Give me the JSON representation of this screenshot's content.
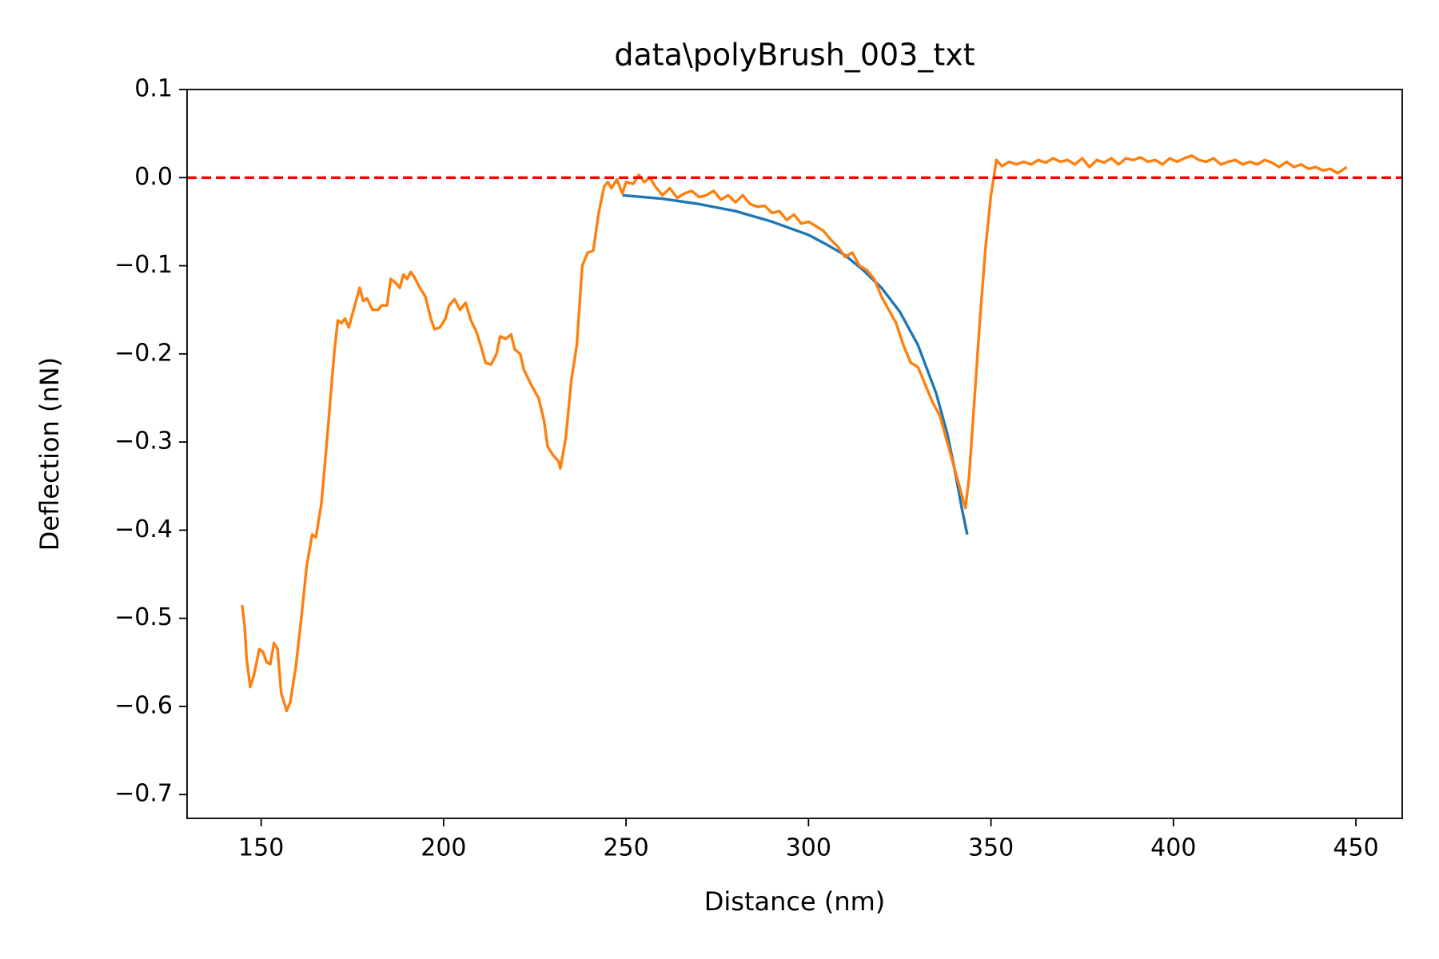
{
  "chart_data": {
    "type": "line",
    "title": "data\\polyBrush_003_txt",
    "x_label": "Distance (nm)",
    "y_label": "Deflection (nN)",
    "xlim": [
      129.7,
      462.7
    ],
    "ylim": [
      -0.727,
      0.1
    ],
    "xticks": [
      150,
      200,
      250,
      300,
      350,
      400,
      450
    ],
    "yticks": [
      {
        "value": -0.7,
        "label": "−0.7"
      },
      {
        "value": -0.6,
        "label": "−0.6"
      },
      {
        "value": -0.5,
        "label": "−0.5"
      },
      {
        "value": -0.4,
        "label": "−0.4"
      },
      {
        "value": -0.3,
        "label": "−0.3"
      },
      {
        "value": -0.2,
        "label": "−0.2"
      },
      {
        "value": -0.1,
        "label": "−0.1"
      },
      {
        "value": 0,
        "label": "0.0"
      },
      0.1
    ],
    "grid": false,
    "reference_line": {
      "value": 0,
      "color": "#ff0000",
      "dashed": true
    },
    "series": [
      {
        "color": "#1f77b4",
        "x": [
          249,
          260,
          270,
          280,
          290,
          300,
          305,
          310,
          315,
          320,
          325,
          330,
          335,
          338,
          340,
          342,
          343.5
        ],
        "values": [
          -0.02,
          -0.024,
          -0.03,
          -0.038,
          -0.05,
          -0.065,
          -0.076,
          -0.088,
          -0.105,
          -0.125,
          -0.152,
          -0.19,
          -0.245,
          -0.29,
          -0.33,
          -0.375,
          -0.405
        ]
      },
      {
        "color": "#ff7f0e",
        "x": [
          144.8,
          145.5,
          146,
          147,
          148,
          149.5,
          150.5,
          151.5,
          152.5,
          153.5,
          154.5,
          155.5,
          157,
          158,
          159.5,
          161,
          162.5,
          164,
          165,
          166.5,
          168,
          170,
          171,
          172,
          173,
          174,
          176,
          177,
          178,
          179,
          180.5,
          182,
          183,
          184.5,
          185.5,
          187,
          188,
          189,
          190,
          191,
          192,
          193.5,
          195,
          196.5,
          197.5,
          199,
          200.5,
          201.5,
          203,
          204.5,
          206,
          207.5,
          209,
          210.5,
          211.5,
          213,
          214.5,
          215.5,
          217,
          218.5,
          219.5,
          221,
          222,
          224,
          226,
          227.5,
          228.5,
          230,
          231.5,
          232,
          233.5,
          235,
          236.5,
          238,
          239.5,
          241,
          242.5,
          244,
          245,
          246,
          247.5,
          249,
          250,
          252,
          253.5,
          255,
          256.5,
          258,
          260,
          262,
          264,
          266,
          268,
          270,
          272,
          274,
          276,
          278,
          280,
          282,
          284,
          286,
          288,
          290,
          292,
          294,
          296,
          298,
          300,
          302,
          304,
          306,
          308,
          310,
          312,
          314,
          316,
          318,
          320,
          322,
          324,
          326,
          328,
          330,
          332,
          334,
          336,
          338,
          340,
          342,
          343,
          344,
          345.5,
          347,
          348.5,
          350,
          351.5,
          353,
          355,
          357,
          359,
          361,
          363,
          365,
          367,
          369,
          371,
          373,
          375,
          377,
          379,
          381,
          383,
          385,
          387,
          389,
          391,
          393,
          395,
          397,
          399,
          401,
          403,
          405,
          407,
          409,
          411,
          413,
          415,
          417,
          419,
          421,
          423,
          425,
          427,
          429,
          431,
          433,
          435,
          437,
          439,
          441,
          443,
          445,
          447.5
        ],
        "values": [
          -0.485,
          -0.51,
          -0.545,
          -0.578,
          -0.565,
          -0.535,
          -0.538,
          -0.55,
          -0.552,
          -0.528,
          -0.535,
          -0.585,
          -0.605,
          -0.595,
          -0.555,
          -0.5,
          -0.44,
          -0.405,
          -0.408,
          -0.37,
          -0.3,
          -0.2,
          -0.162,
          -0.165,
          -0.16,
          -0.17,
          -0.14,
          -0.125,
          -0.14,
          -0.137,
          -0.15,
          -0.15,
          -0.145,
          -0.145,
          -0.115,
          -0.12,
          -0.125,
          -0.11,
          -0.115,
          -0.107,
          -0.113,
          -0.125,
          -0.135,
          -0.16,
          -0.172,
          -0.17,
          -0.16,
          -0.145,
          -0.138,
          -0.15,
          -0.142,
          -0.162,
          -0.175,
          -0.195,
          -0.21,
          -0.212,
          -0.2,
          -0.18,
          -0.183,
          -0.178,
          -0.195,
          -0.2,
          -0.218,
          -0.235,
          -0.25,
          -0.275,
          -0.305,
          -0.315,
          -0.322,
          -0.33,
          -0.295,
          -0.23,
          -0.19,
          -0.1,
          -0.085,
          -0.083,
          -0.04,
          -0.01,
          -0.005,
          -0.012,
          -0.002,
          -0.018,
          -0.005,
          -0.007,
          0.003,
          -0.005,
          0.0,
          -0.01,
          -0.02,
          -0.012,
          -0.023,
          -0.018,
          -0.015,
          -0.022,
          -0.02,
          -0.015,
          -0.025,
          -0.02,
          -0.028,
          -0.02,
          -0.03,
          -0.033,
          -0.032,
          -0.04,
          -0.038,
          -0.048,
          -0.042,
          -0.052,
          -0.05,
          -0.055,
          -0.06,
          -0.07,
          -0.078,
          -0.09,
          -0.085,
          -0.1,
          -0.105,
          -0.115,
          -0.135,
          -0.15,
          -0.165,
          -0.19,
          -0.21,
          -0.215,
          -0.235,
          -0.255,
          -0.27,
          -0.3,
          -0.33,
          -0.36,
          -0.375,
          -0.34,
          -0.25,
          -0.16,
          -0.08,
          -0.02,
          0.02,
          0.013,
          0.018,
          0.015,
          0.018,
          0.015,
          0.02,
          0.017,
          0.022,
          0.018,
          0.02,
          0.015,
          0.022,
          0.012,
          0.02,
          0.017,
          0.022,
          0.015,
          0.022,
          0.02,
          0.023,
          0.018,
          0.02,
          0.015,
          0.022,
          0.018,
          0.022,
          0.025,
          0.02,
          0.018,
          0.022,
          0.015,
          0.018,
          0.02,
          0.015,
          0.018,
          0.015,
          0.02,
          0.017,
          0.012,
          0.018,
          0.012,
          0.015,
          0.01,
          0.012,
          0.008,
          0.01,
          0.005,
          0.012
        ]
      }
    ]
  }
}
